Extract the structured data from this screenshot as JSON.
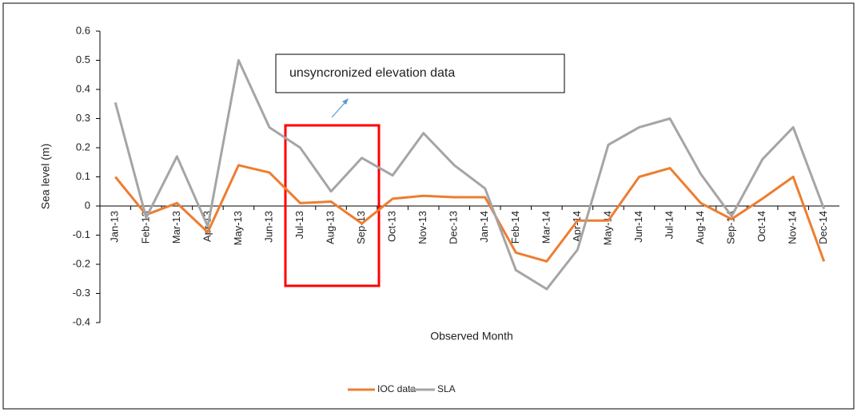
{
  "chart_data": {
    "type": "line",
    "x_label": "Observed Month",
    "y_label": "Sea level (m)",
    "annotations": [
      "unsyncronized elevation data"
    ],
    "categories": [
      "Jan-13",
      "Feb-13",
      "Mar-13",
      "Apr-13",
      "May-13",
      "Jun-13",
      "Jul-13",
      "Aug-13",
      "Sep-13",
      "Oct-13",
      "Nov-13",
      "Dec-13",
      "Jan-14",
      "Feb-14",
      "Mar-14",
      "Apr-14",
      "May-14",
      "Jun-14",
      "Jul-14",
      "Aug-14",
      "Sep-14",
      "Oct-14",
      "Nov-14",
      "Dec-14"
    ],
    "series": [
      {
        "name": "IOC data",
        "color": "#ed7d31",
        "values": [
          0.1,
          -0.03,
          0.01,
          -0.09,
          0.14,
          0.115,
          0.01,
          0.015,
          -0.06,
          0.025,
          0.035,
          0.03,
          0.03,
          -0.16,
          -0.19,
          -0.05,
          -0.05,
          0.1,
          0.13,
          0.01,
          -0.045,
          0.025,
          0.1,
          -0.19
        ]
      },
      {
        "name": "SLA",
        "color": "#a5a5a5",
        "values": [
          0.355,
          -0.04,
          0.17,
          -0.07,
          0.5,
          0.27,
          0.2,
          0.05,
          0.165,
          0.105,
          0.25,
          0.14,
          0.06,
          -0.22,
          -0.285,
          -0.15,
          0.21,
          0.27,
          0.3,
          0.11,
          -0.035,
          0.16,
          0.27,
          -0.01
        ]
      }
    ],
    "ylim": [
      -0.4,
      0.6
    ],
    "yticks": [
      -0.4,
      -0.3,
      -0.2,
      -0.1,
      0,
      0.1,
      0.2,
      0.3,
      0.4,
      0.5,
      0.6
    ],
    "grid": false,
    "legend": "bottom"
  }
}
